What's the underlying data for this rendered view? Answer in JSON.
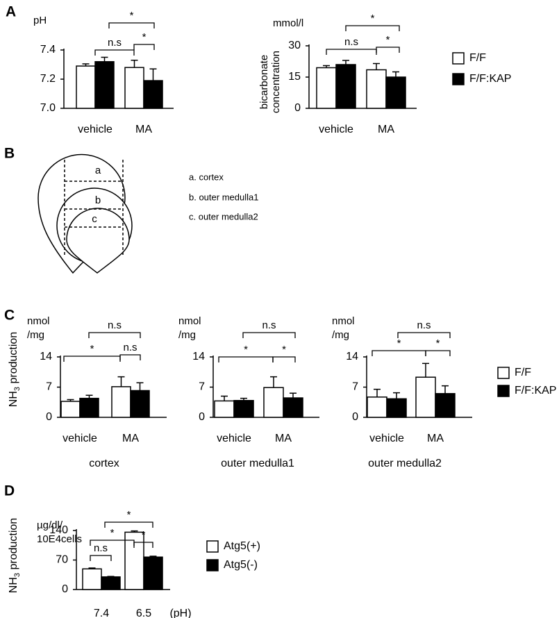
{
  "panels": [
    "A",
    "B",
    "C",
    "D"
  ],
  "diagram": {
    "labels": [
      "a",
      "b",
      "c"
    ],
    "legend": [
      "a. cortex",
      "b. outer medulla1",
      "c. outer medulla2"
    ]
  },
  "chart_data": [
    {
      "type": "bar",
      "unit": [
        "pH"
      ],
      "categories": [
        "vehicle",
        "MA"
      ],
      "series": [
        {
          "color": "#ffffff",
          "values": [
            7.29,
            7.28
          ],
          "errors": [
            0.015,
            0.05
          ]
        },
        {
          "color": "#000000",
          "values": [
            7.32,
            7.19
          ],
          "errors": [
            0.03,
            0.08
          ]
        }
      ],
      "ylim": [
        7.0,
        7.4
      ],
      "yticks": [
        {
          "value": 7.0,
          "label": "7.0"
        },
        7.2,
        7.4
      ],
      "annotations": [
        "n.s",
        "*",
        "*"
      ]
    },
    {
      "type": "bar",
      "unit": [
        "mmol/l"
      ],
      "ylabel_lines": [
        "bicarbonate",
        "concentration"
      ],
      "categories": [
        "vehicle",
        "MA"
      ],
      "series": [
        {
          "name": "F/F",
          "color": "#ffffff",
          "values": [
            19.5,
            18.5
          ],
          "errors": [
            1,
            3
          ]
        },
        {
          "name": "F/F:KAP",
          "color": "#000000",
          "values": [
            21,
            15
          ],
          "errors": [
            2,
            2.5
          ]
        }
      ],
      "ylim": [
        0,
        30
      ],
      "yticks": [
        0,
        15,
        30
      ],
      "annotations": [
        "n.s",
        "*",
        "*"
      ],
      "legend": true
    },
    {
      "type": "bar",
      "unit": [
        "nmol",
        "/mg"
      ],
      "ylabel": {
        "text": "NH",
        "sub": "3",
        "tail": " production"
      },
      "subtitle": "cortex",
      "categories": [
        "vehicle",
        "MA"
      ],
      "series": [
        {
          "color": "#ffffff",
          "values": [
            3.7,
            7.1
          ],
          "errors": [
            0.4,
            2.3
          ]
        },
        {
          "color": "#000000",
          "values": [
            4.4,
            6.2
          ],
          "errors": [
            0.7,
            1.8
          ]
        }
      ],
      "ylim": [
        0,
        14
      ],
      "yticks": [
        0,
        7,
        14
      ],
      "annotations": [
        "n.s",
        "*",
        "n.s"
      ]
    },
    {
      "type": "bar",
      "unit": [
        "nmol",
        "/mg"
      ],
      "subtitle": "outer medulla1",
      "categories": [
        "vehicle",
        "MA"
      ],
      "series": [
        {
          "color": "#ffffff",
          "values": [
            3.8,
            6.9
          ],
          "errors": [
            1.1,
            2.5
          ]
        },
        {
          "color": "#000000",
          "values": [
            3.9,
            4.5
          ],
          "errors": [
            0.5,
            1.1
          ]
        }
      ],
      "ylim": [
        0,
        14
      ],
      "yticks": [
        0,
        7,
        14
      ],
      "annotations": [
        "n.s",
        "*",
        "*"
      ]
    },
    {
      "type": "bar",
      "unit": [
        "nmol",
        "/mg"
      ],
      "subtitle": "outer medulla2",
      "categories": [
        "vehicle",
        "MA"
      ],
      "series": [
        {
          "name": "F/F",
          "color": "#ffffff",
          "values": [
            4.7,
            9.3
          ],
          "errors": [
            1.8,
            3.2
          ]
        },
        {
          "name": "F/F:KAP",
          "color": "#000000",
          "values": [
            4.3,
            5.5
          ],
          "errors": [
            1.4,
            1.8
          ]
        }
      ],
      "ylim": [
        0,
        14
      ],
      "yticks": [
        0,
        7,
        14
      ],
      "annotations": [
        "n.s",
        "*",
        "*"
      ],
      "legend": true
    },
    {
      "type": "bar",
      "unit": [
        "µg/dl/",
        "10E4cells"
      ],
      "ylabel": {
        "text": "NH",
        "sub": "3",
        "tail": " production"
      },
      "categories": [
        "7.4",
        "6.5"
      ],
      "xlabel": "(pH)",
      "series": [
        {
          "name": "Atg5(+)",
          "color": "#ffffff",
          "values": [
            49,
            136
          ],
          "errors": [
            2,
            3
          ]
        },
        {
          "name": "Atg5(-)",
          "color": "#000000",
          "values": [
            30,
            77
          ],
          "errors": [
            1,
            2
          ]
        }
      ],
      "ylim": [
        0,
        140
      ],
      "yticks": [
        0,
        70,
        140
      ],
      "annotations": [
        "*",
        "*",
        "n.s",
        "*"
      ],
      "legend": true
    }
  ]
}
